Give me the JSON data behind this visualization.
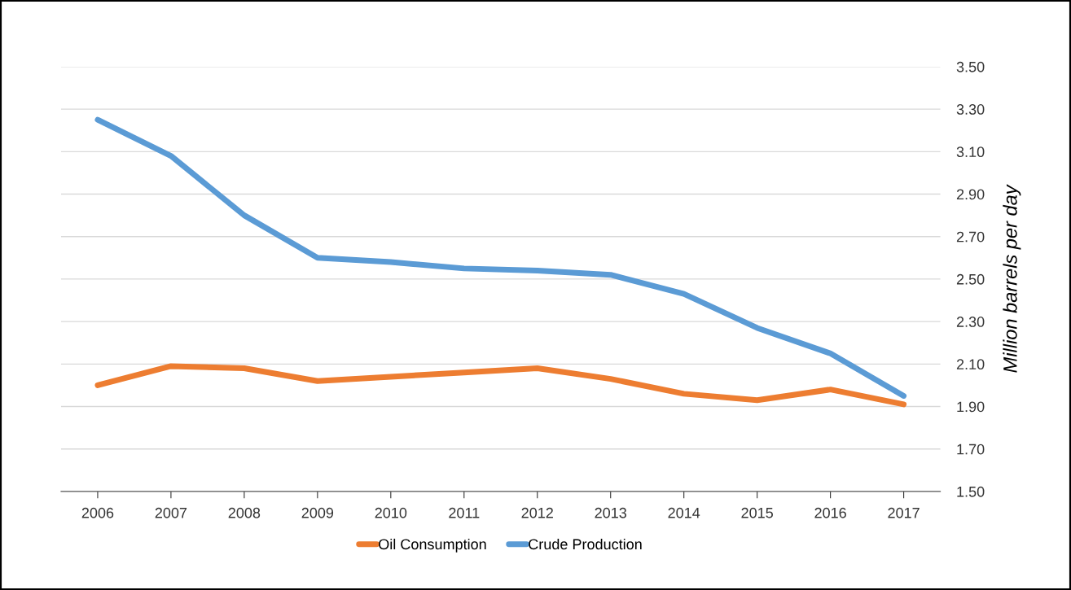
{
  "chart_data": {
    "type": "line",
    "categories": [
      "2006",
      "2007",
      "2008",
      "2009",
      "2010",
      "2011",
      "2012",
      "2013",
      "2014",
      "2015",
      "2016",
      "2017"
    ],
    "series": [
      {
        "name": "Oil Consumption",
        "color": "#ed7d31",
        "values": [
          2.0,
          2.09,
          2.08,
          2.02,
          2.04,
          2.06,
          2.08,
          2.03,
          1.96,
          1.93,
          1.98,
          1.91
        ]
      },
      {
        "name": "Crude Production",
        "color": "#5b9bd5",
        "values": [
          3.25,
          3.08,
          2.8,
          2.6,
          2.58,
          2.55,
          2.54,
          2.52,
          2.43,
          2.27,
          2.15,
          1.95
        ]
      }
    ],
    "ylabel": "Million barrels per day",
    "ylim": [
      1.5,
      3.5
    ],
    "yticks": [
      {
        "value": 1.5,
        "label": "1.50"
      },
      {
        "value": 1.7,
        "label": "1.70"
      },
      {
        "value": 1.9,
        "label": "1.90"
      },
      {
        "value": 2.1,
        "label": "2.10"
      },
      {
        "value": 2.3,
        "label": "2.30"
      },
      {
        "value": 2.5,
        "label": "2.50"
      },
      {
        "value": 2.7,
        "label": "2.70"
      },
      {
        "value": 2.9,
        "label": "2.90"
      },
      {
        "value": 3.1,
        "label": "3.10"
      },
      {
        "value": 3.3,
        "label": "3.30"
      },
      {
        "value": 3.5,
        "label": "3.50"
      }
    ],
    "grid": "y",
    "legend": "bottom",
    "marker": "none",
    "line_style": "solid"
  }
}
